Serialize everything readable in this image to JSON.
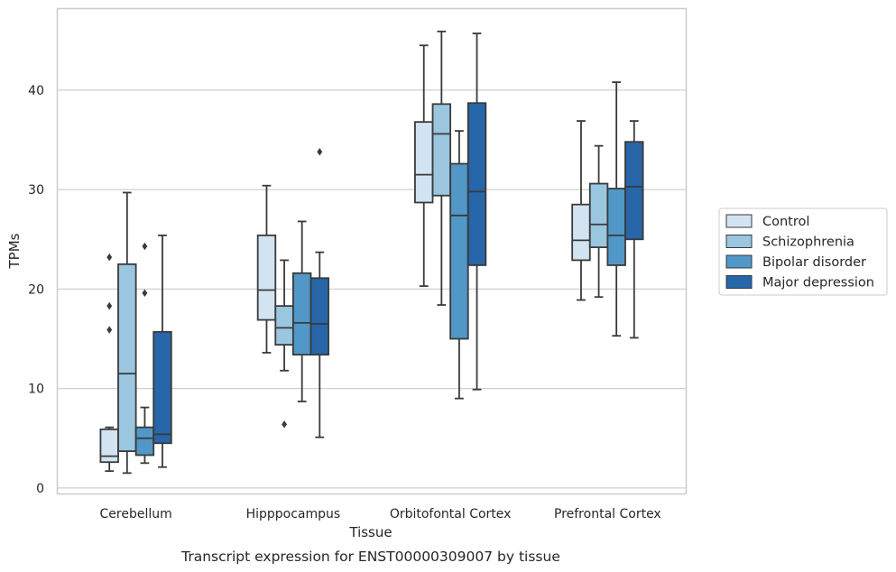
{
  "chart_data": {
    "type": "box",
    "xlabel": "Tissue",
    "ylabel": "TPMs",
    "caption": "Transcript expression for ENST00000309007 by tissue",
    "categories": [
      "Cerebellum",
      "Hipppocampus",
      "Orbitofontal Cortex",
      "Prefrontal Cortex"
    ],
    "ylim": [
      -0.6,
      48.2
    ],
    "yticks": [
      0,
      10,
      20,
      30,
      40
    ],
    "grid": true,
    "legend": {
      "placement": "right",
      "entries": [
        "Control",
        "Schizophrenia",
        "Bipolar disorder",
        "Major depression"
      ]
    },
    "colors": {
      "Control": "#d2e3f2",
      "Schizophrenia": "#9ac6df",
      "Bipolar disorder": "#5197c7",
      "Major depression": "#2766a8",
      "line": "#3a3a3a",
      "grid": "#d0d0d0",
      "frame": "#cccccc"
    },
    "series": [
      {
        "name": "Control",
        "boxes": [
          {
            "whislo": 1.7,
            "q1": 2.6,
            "med": 3.2,
            "q3": 5.9,
            "whishi": 6.1,
            "fliers": [
              15.9,
              18.3,
              23.2
            ]
          },
          {
            "whislo": 13.6,
            "q1": 16.9,
            "med": 19.9,
            "q3": 25.4,
            "whishi": 30.4,
            "fliers": []
          },
          {
            "whislo": 20.3,
            "q1": 28.7,
            "med": 31.5,
            "q3": 36.8,
            "whishi": 44.5,
            "fliers": []
          },
          {
            "whislo": 18.9,
            "q1": 22.9,
            "med": 24.9,
            "q3": 28.5,
            "whishi": 36.9,
            "fliers": []
          }
        ]
      },
      {
        "name": "Schizophrenia",
        "boxes": [
          {
            "whislo": 1.5,
            "q1": 3.7,
            "med": 11.5,
            "q3": 22.5,
            "whishi": 29.7,
            "fliers": []
          },
          {
            "whislo": 11.8,
            "q1": 14.4,
            "med": 16.1,
            "q3": 18.3,
            "whishi": 22.9,
            "fliers": [
              6.4
            ]
          },
          {
            "whislo": 18.4,
            "q1": 29.4,
            "med": 35.6,
            "q3": 38.6,
            "whishi": 45.9,
            "fliers": []
          },
          {
            "whislo": 19.2,
            "q1": 24.2,
            "med": 26.5,
            "q3": 30.6,
            "whishi": 34.4,
            "fliers": []
          }
        ]
      },
      {
        "name": "Bipolar disorder",
        "boxes": [
          {
            "whislo": 2.5,
            "q1": 3.3,
            "med": 5.0,
            "q3": 6.1,
            "whishi": 8.1,
            "fliers": [
              19.6,
              24.3
            ]
          },
          {
            "whislo": 8.7,
            "q1": 13.4,
            "med": 16.6,
            "q3": 21.6,
            "whishi": 26.8,
            "fliers": []
          },
          {
            "whislo": 9.0,
            "q1": 15.0,
            "med": 27.4,
            "q3": 32.6,
            "whishi": 35.9,
            "fliers": []
          },
          {
            "whislo": 15.3,
            "q1": 22.4,
            "med": 25.4,
            "q3": 30.1,
            "whishi": 40.8,
            "fliers": []
          }
        ]
      },
      {
        "name": "Major depression",
        "boxes": [
          {
            "whislo": 2.1,
            "q1": 4.5,
            "med": 5.4,
            "q3": 15.7,
            "whishi": 25.4,
            "fliers": []
          },
          {
            "whislo": 5.1,
            "q1": 13.4,
            "med": 16.5,
            "q3": 21.1,
            "whishi": 23.7,
            "fliers": [
              33.8
            ]
          },
          {
            "whislo": 9.9,
            "q1": 22.4,
            "med": 29.8,
            "q3": 38.7,
            "whishi": 45.7,
            "fliers": []
          },
          {
            "whislo": 15.1,
            "q1": 25.0,
            "med": 30.3,
            "q3": 34.8,
            "whishi": 36.9,
            "fliers": []
          }
        ]
      }
    ]
  }
}
